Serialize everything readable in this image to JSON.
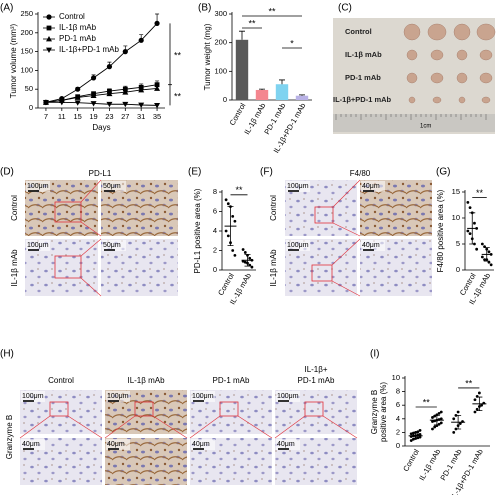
{
  "chart_data": [
    {
      "type": "line",
      "ylabel": "Tumor volume (mm³)",
      "xlabel": "Days",
      "x": [
        7,
        11,
        15,
        19,
        23,
        27,
        31,
        35
      ],
      "xlim": [
        5,
        37
      ],
      "xticks": [
        7,
        11,
        15,
        19,
        23,
        27,
        31,
        35
      ],
      "ylim": [
        0,
        250
      ],
      "yticks": [
        0,
        50,
        100,
        150,
        200,
        250
      ],
      "series": [
        {
          "name": "Control",
          "color": "#000000",
          "marker": "circle",
          "values": [
            15,
            25,
            50,
            80,
            110,
            150,
            180,
            225
          ],
          "errors": [
            2,
            3,
            5,
            8,
            12,
            15,
            15,
            25
          ]
        },
        {
          "name": "IL-1β mAb",
          "color": "#000000",
          "marker": "square",
          "values": [
            15,
            20,
            30,
            38,
            45,
            50,
            55,
            62
          ],
          "errors": [
            1,
            2,
            4,
            5,
            6,
            8,
            9,
            10
          ]
        },
        {
          "name": "PD-1 mAb",
          "color": "#000000",
          "marker": "triangle",
          "values": [
            15,
            20,
            28,
            33,
            38,
            42,
            48,
            52
          ],
          "errors": [
            1,
            2,
            3,
            4,
            5,
            5,
            6,
            8
          ]
        },
        {
          "name": "IL-1β+PD-1 mAb",
          "color": "#000000",
          "marker": "triangle-down",
          "values": [
            15,
            15,
            14,
            12,
            10,
            10,
            8,
            7
          ],
          "errors": [
            1,
            1,
            1,
            1,
            1,
            1,
            1,
            1
          ]
        }
      ],
      "annotations": [
        "**",
        "**"
      ]
    },
    {
      "type": "bar",
      "ylabel": "Tumor weight (mg)",
      "categories": [
        "Control",
        "IL-1β mAb",
        "PD-1 mAb",
        "IL-1β+PD-1 mAb"
      ],
      "values": [
        210,
        35,
        55,
        15
      ],
      "errors": [
        30,
        3,
        15,
        3
      ],
      "colors": [
        "#595959",
        "#f4868f",
        "#7fd3f0",
        "#b9b2e6"
      ],
      "ylim": [
        0,
        300
      ],
      "yticks": [
        0,
        100,
        200,
        300
      ],
      "annotations": [
        "**",
        "**",
        "*"
      ]
    },
    {
      "type": "dot",
      "ylabel": "PD-L1 positive area (%)",
      "categories": [
        "Control",
        "IL-1β mAb"
      ],
      "values": [
        [
          7.2,
          6.8,
          6.5,
          5.5,
          5.0,
          4.0,
          3.5,
          2.8,
          2.0,
          1.5
        ],
        [
          2.1,
          1.8,
          1.5,
          1.2,
          1.0,
          0.9,
          0.8,
          0.7,
          0.5,
          0.3
        ]
      ],
      "means": [
        4.5,
        1.0
      ],
      "sds": [
        2.0,
        0.6
      ],
      "ylim": [
        0,
        8
      ],
      "yticks": [
        0,
        2,
        4,
        6,
        8
      ],
      "annotations": [
        "**"
      ]
    },
    {
      "type": "dot",
      "ylabel": "F4/80 positive area (%)",
      "categories": [
        "Control",
        "IL-1β mAb"
      ],
      "values": [
        [
          13,
          12,
          11,
          9,
          8,
          7.5,
          7,
          6,
          5,
          4
        ],
        [
          5,
          4.5,
          4,
          3.5,
          3,
          2.5,
          2,
          2,
          1.5,
          1
        ]
      ],
      "means": [
        8,
        3
      ],
      "sds": [
        3,
        1.3
      ],
      "ylim": [
        0,
        15
      ],
      "yticks": [
        0,
        5,
        10,
        15
      ],
      "annotations": [
        "**"
      ]
    },
    {
      "type": "dot",
      "ylabel": [
        "Granzyme B",
        "positive area (%)"
      ],
      "categories": [
        "Control",
        "IL-1β mAb",
        "PD-1 mAb",
        "IL-1β+PD-1 mAb"
      ],
      "values": [
        [
          0.8,
          1.0,
          1.1,
          1.2,
          1.3,
          1.4,
          1.5,
          1.5,
          1.6,
          1.7,
          1.8,
          1.9,
          2.0,
          2.1,
          2.3
        ],
        [
          2.5,
          2.8,
          3.0,
          3.2,
          3.4,
          3.6,
          3.7,
          3.8,
          3.9,
          4.0,
          4.2,
          4.4,
          4.6,
          4.8,
          5.0
        ],
        [
          2.0,
          2.5,
          3.0,
          3.3,
          3.6,
          4.0,
          4.5,
          5.0
        ],
        [
          5.0,
          5.4,
          5.8,
          6.0,
          6.3,
          6.8,
          7.3,
          7.8
        ]
      ],
      "means": [
        1.5,
        3.8,
        3.5,
        6.2
      ],
      "sds": [
        0.4,
        0.7,
        1.0,
        1.0
      ],
      "ylim": [
        0,
        10
      ],
      "yticks": [
        0,
        2,
        4,
        6,
        8,
        10
      ],
      "annotations": [
        "**",
        "**"
      ]
    }
  ],
  "figure": {
    "panel_letters": [
      "(A)",
      "(B)",
      "(C)",
      "(D)",
      "(E)",
      "(F)",
      "(G)",
      "(H)",
      "(I)"
    ],
    "photo_labels": [
      "Control",
      "IL-1β mAb",
      "PD-1 mAb",
      "IL-1β+PD-1 mAb"
    ],
    "photo_ruler": "1cm",
    "pdl1": {
      "title": "PD-L1",
      "rows": [
        "Control",
        "IL-1β mAb"
      ],
      "scale_low": "100μm",
      "scale_high": "50μm"
    },
    "f480": {
      "title": "F4/80",
      "rows": [
        "Control",
        "IL-1β mAb"
      ],
      "scale_low": "100μm",
      "scale_high": "40μm"
    },
    "granzyme": {
      "row_label": "Granzyme B",
      "columns": [
        "Control",
        "IL-1β mAb",
        "PD-1 mAb",
        [
          "IL-1β+",
          "PD-1 mAb"
        ]
      ],
      "scale_low": "100μm",
      "scale_high": "40μm"
    }
  }
}
